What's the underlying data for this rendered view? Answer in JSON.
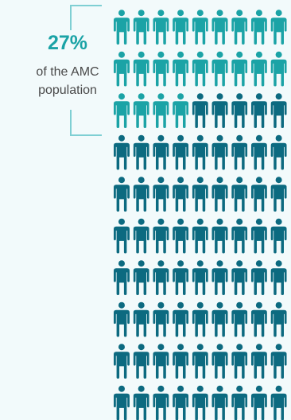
{
  "callout": {
    "percentage": "27%",
    "line1": "of the AMC",
    "line2": "population"
  },
  "colors": {
    "highlight": "#1ba3a6",
    "base": "#0c6a80",
    "background": "#f2fafb",
    "bracket": "#7fcfd3",
    "text": "#4a4a4a"
  },
  "chart_data": {
    "type": "pictogram",
    "icon": "person-icon",
    "highlighted_percent": 27,
    "highlighted_label": "of the AMC population",
    "rows_visible": 10,
    "columns_visible": 9,
    "highlighted_per_row": [
      9,
      9,
      4,
      0,
      0,
      0,
      0,
      0,
      0,
      0
    ]
  }
}
